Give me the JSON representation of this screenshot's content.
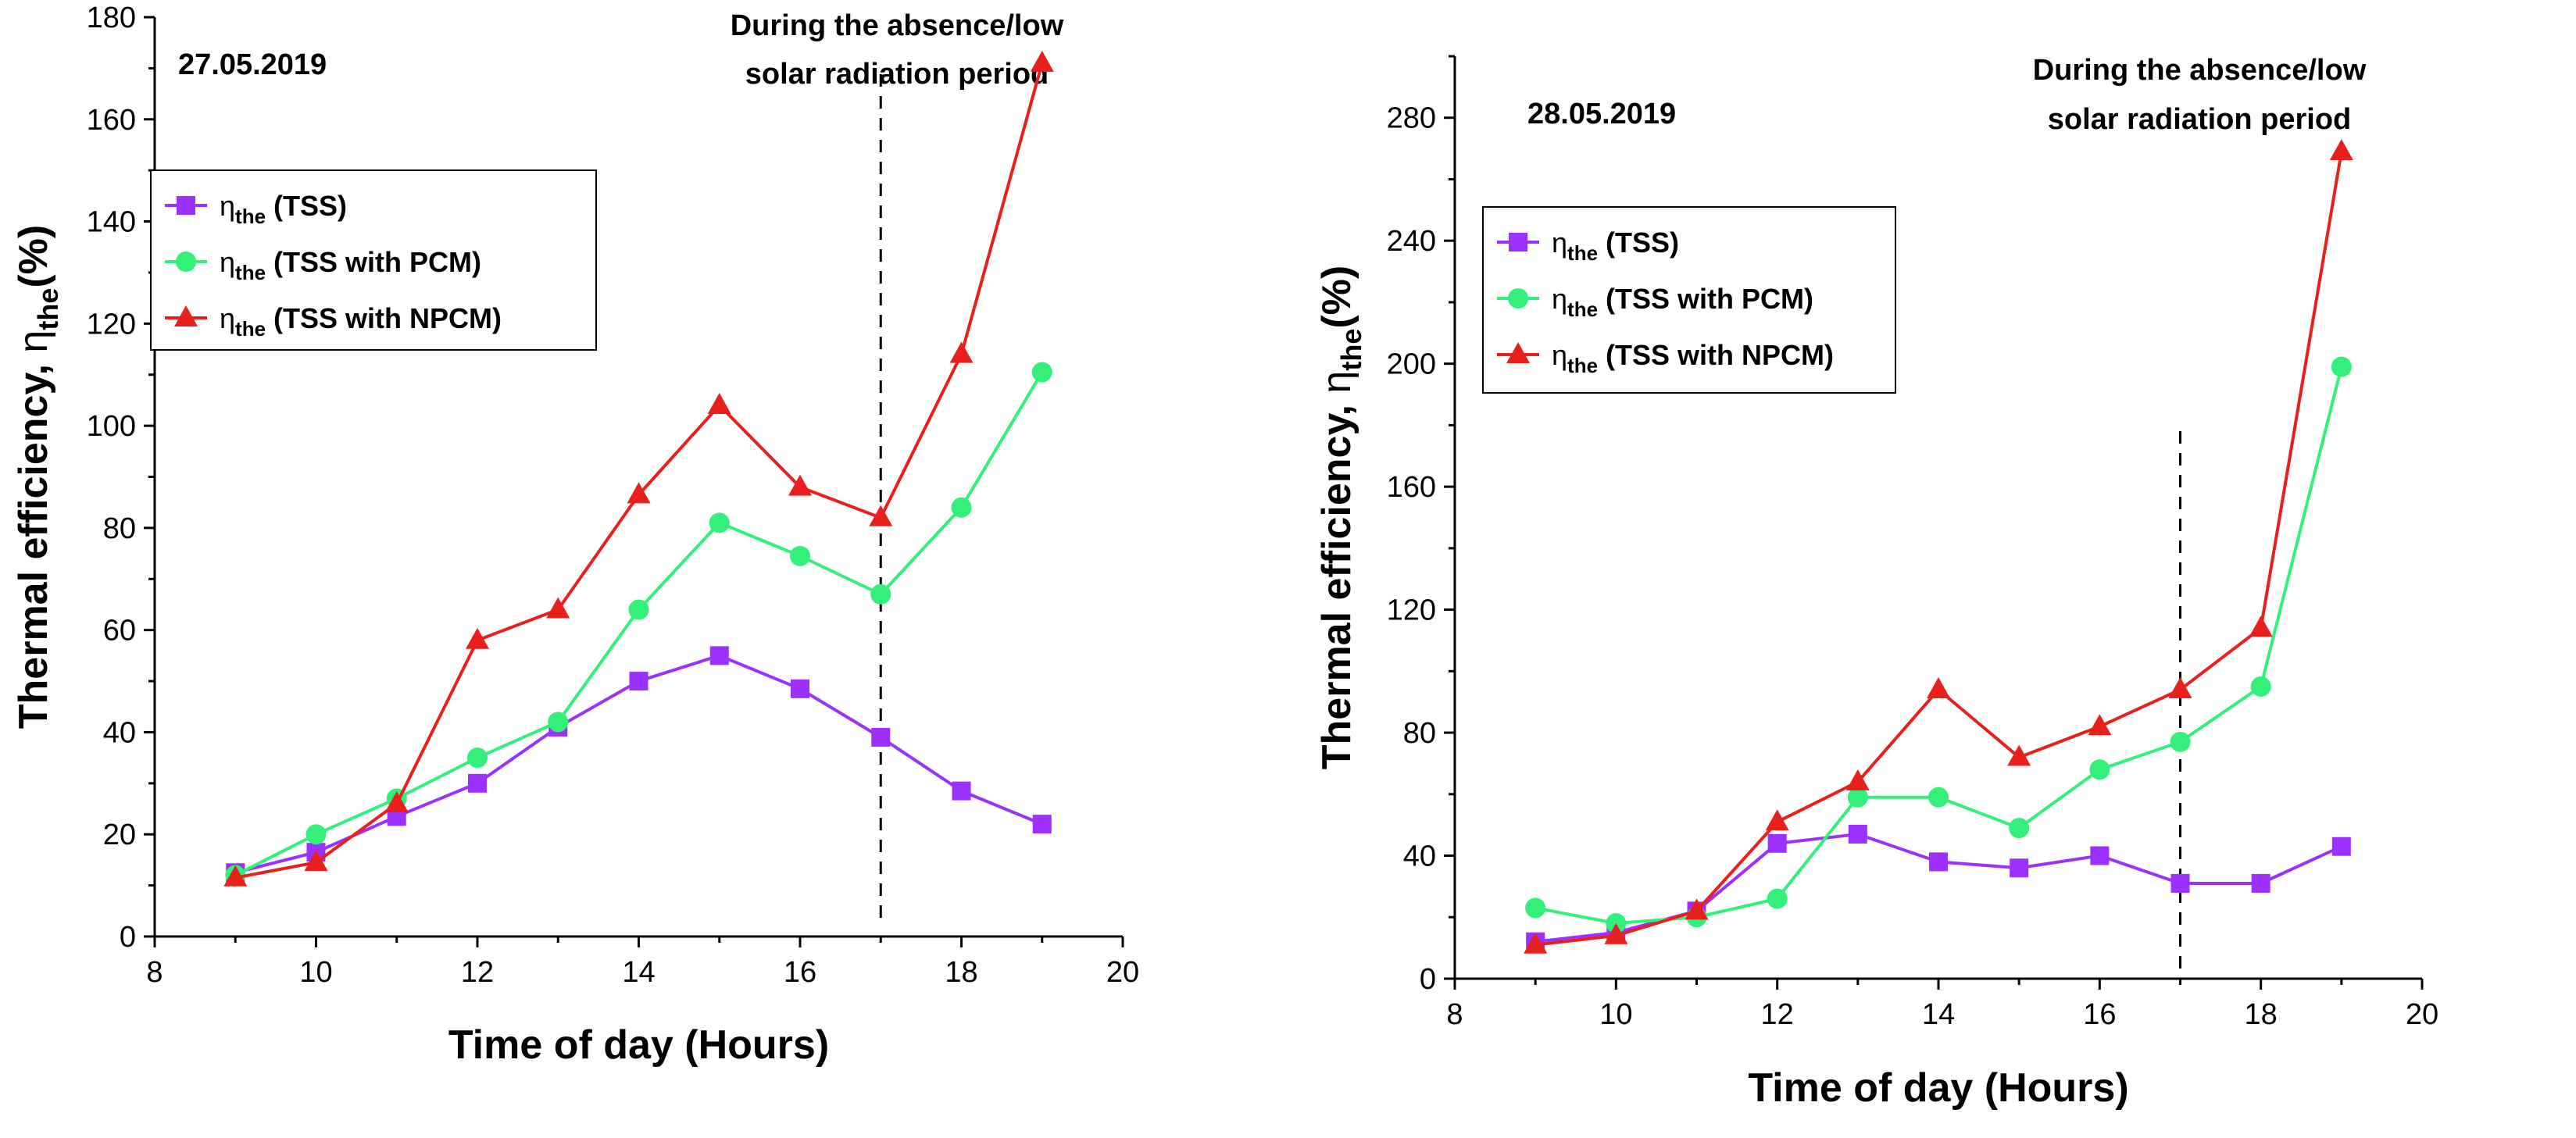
{
  "colors": {
    "tss": "#9b30ff",
    "pcm": "#33f07a",
    "npcm": "#e8201c",
    "axis": "#000000"
  },
  "chart_data": [
    {
      "type": "line",
      "date_label": "27.05.2019",
      "annotation_line1": "During the absence/low",
      "annotation_line2": "solar radiation period",
      "vline_x": 17,
      "xlabel": "Time of day (Hours)",
      "ylabel_main": "Thermal efficiency, ",
      "ylabel_eta": "η",
      "ylabel_sub": "the",
      "ylabel_tail": "(%)",
      "xlim": [
        8,
        20
      ],
      "ylim": [
        0,
        180
      ],
      "xticks": [
        8,
        10,
        12,
        14,
        16,
        18,
        20
      ],
      "yticks": [
        0,
        20,
        40,
        60,
        80,
        100,
        120,
        140,
        160,
        180
      ],
      "legend_placement": "top-left",
      "series": [
        {
          "name": "η_the (TSS)",
          "eta": "η",
          "sub": "the",
          "label": " (TSS)",
          "marker": "square",
          "color_key": "tss",
          "x": [
            9,
            10,
            11,
            12,
            13,
            14,
            15,
            16,
            17,
            18,
            19
          ],
          "values": [
            12.5,
            16.5,
            23.5,
            30,
            41,
            50,
            55,
            48.5,
            39,
            28.5,
            22
          ]
        },
        {
          "name": "η_the (TSS with PCM)",
          "eta": "η",
          "sub": "the",
          "label": " (TSS with PCM)",
          "marker": "circle",
          "color_key": "pcm",
          "x": [
            9,
            10,
            11,
            12,
            13,
            14,
            15,
            16,
            17,
            18,
            19
          ],
          "values": [
            12,
            20,
            27,
            35,
            42,
            64,
            81,
            74.5,
            67,
            84,
            110.5
          ]
        },
        {
          "name": "η_the (TSS with NPCM)",
          "eta": "η",
          "sub": "the",
          "label": " (TSS with NPCM)",
          "marker": "triangle",
          "color_key": "npcm",
          "x": [
            9,
            10,
            11,
            12,
            13,
            14,
            15,
            16,
            17,
            18,
            19
          ],
          "values": [
            11.5,
            14.5,
            26,
            58,
            64,
            86.5,
            104,
            88,
            82,
            114,
            171
          ]
        }
      ]
    },
    {
      "type": "line",
      "date_label": "28.05.2019",
      "annotation_line1": "During the absence/low",
      "annotation_line2": "solar radiation period",
      "vline_x": 17,
      "xlabel": "Time of day (Hours)",
      "ylabel_main": "Thermal efficiency, ",
      "ylabel_eta": "η",
      "ylabel_sub": "the",
      "ylabel_tail": "(%)",
      "xlim": [
        8,
        20
      ],
      "ylim": [
        0,
        300
      ],
      "xticks": [
        8,
        10,
        12,
        14,
        16,
        18,
        20
      ],
      "yticks": [
        0,
        40,
        80,
        120,
        160,
        200,
        240,
        280
      ],
      "legend_placement": "top-left",
      "series": [
        {
          "name": "η_the (TSS)",
          "eta": "η",
          "sub": "the",
          "label": " (TSS)",
          "marker": "square",
          "color_key": "tss",
          "x": [
            9,
            10,
            11,
            12,
            13,
            14,
            15,
            16,
            17,
            18,
            19
          ],
          "values": [
            12,
            15,
            22,
            44,
            47,
            38,
            36,
            40,
            31,
            31,
            43
          ]
        },
        {
          "name": "η_the (TSS with PCM)",
          "eta": "η",
          "sub": "the",
          "label": " (TSS with PCM)",
          "marker": "circle",
          "color_key": "pcm",
          "x": [
            9,
            10,
            11,
            12,
            13,
            14,
            15,
            16,
            17,
            18,
            19
          ],
          "values": [
            23,
            18,
            20,
            26,
            59,
            59,
            49,
            68,
            77,
            95,
            199
          ]
        },
        {
          "name": "η_the (TSS with NPCM)",
          "eta": "η",
          "sub": "the",
          "label": " (TSS with NPCM)",
          "marker": "triangle",
          "color_key": "npcm",
          "x": [
            9,
            10,
            11,
            12,
            13,
            14,
            15,
            16,
            17,
            18,
            19
          ],
          "values": [
            11,
            14,
            22,
            51,
            64,
            94,
            72,
            82,
            94,
            114,
            269
          ]
        }
      ]
    }
  ]
}
